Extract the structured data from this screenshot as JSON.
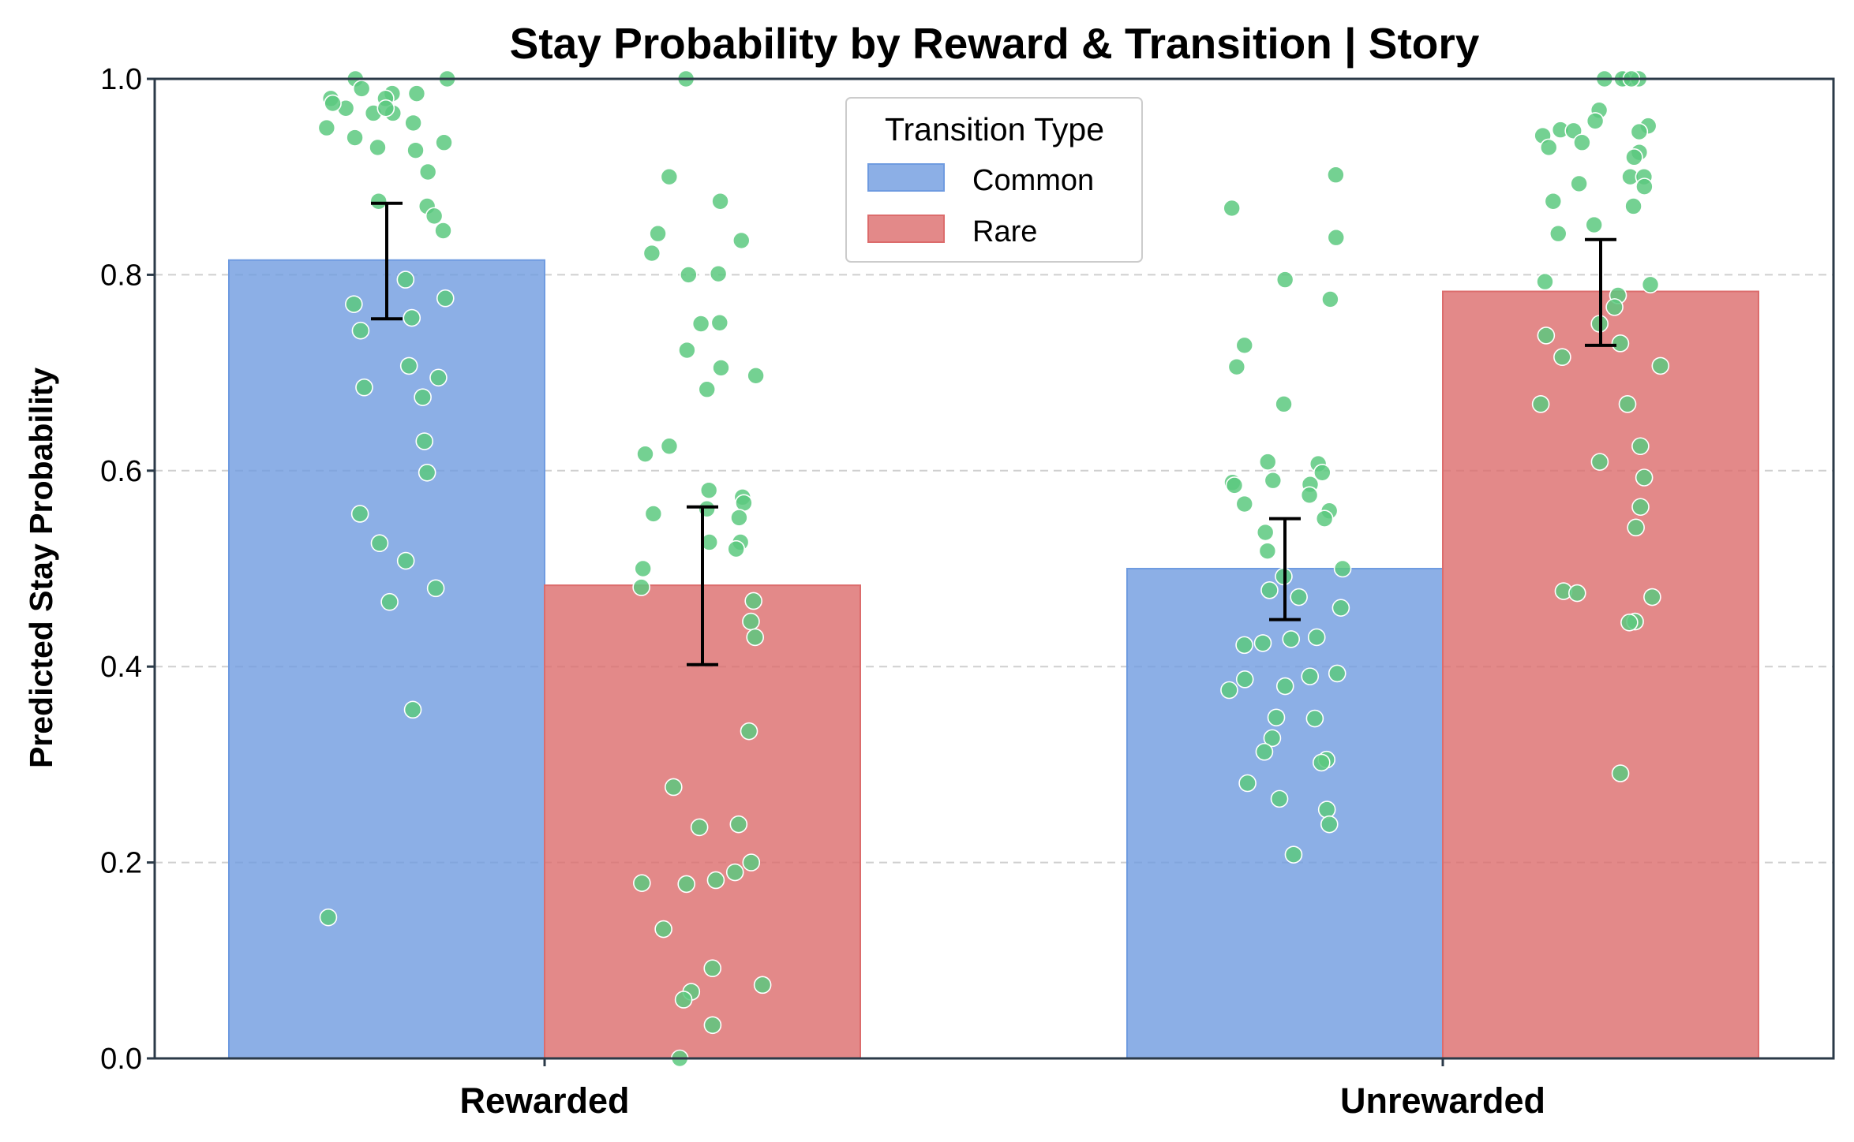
{
  "chart_data": {
    "type": "bar",
    "title": "Stay Probability by Reward & Transition | Story",
    "xlabel": "",
    "ylabel": "Predicted Stay Probability",
    "ylim": [
      0,
      1.0
    ],
    "yticks": [
      "0.0",
      "0.2",
      "0.4",
      "0.6",
      "0.8",
      "1.0"
    ],
    "grid": "horizontal dashed",
    "categories": [
      "Rewarded",
      "Unrewarded"
    ],
    "legend": {
      "title": "Transition Type",
      "placement": "top-center"
    },
    "series": [
      {
        "name": "Common",
        "color": "#6f9be0",
        "values": [
          0.815,
          0.5
        ],
        "errors": [
          [
            0.755,
            0.873
          ],
          [
            0.448,
            0.551
          ]
        ]
      },
      {
        "name": "Rare",
        "color": "#dc6c6c",
        "values": [
          0.483,
          0.783
        ],
        "errors": [
          [
            0.402,
            0.563
          ],
          [
            0.728,
            0.836
          ]
        ]
      }
    ],
    "points_color": "#5cc97f",
    "points": [
      [
        [
          1.0,
          0.98,
          0.97,
          0.99,
          0.985,
          0.975,
          0.93,
          0.955,
          0.94,
          0.965,
          0.935,
          0.927,
          0.87,
          0.875,
          0.86,
          0.905,
          0.845,
          0.795,
          0.77,
          0.776,
          0.756,
          0.743,
          0.707,
          0.695,
          0.685,
          0.675,
          0.63,
          0.598,
          0.556,
          0.526,
          0.508,
          0.48,
          0.466,
          0.356,
          0.144,
          1.0,
          0.98,
          0.965,
          0.97,
          0.95,
          0.985
        ],
        [
          1.0,
          0.9,
          0.875,
          0.842,
          0.835,
          0.822,
          0.801,
          0.8,
          0.751,
          0.75,
          0.723,
          0.705,
          0.697,
          0.683,
          0.625,
          0.617,
          0.58,
          0.573,
          0.561,
          0.567,
          0.556,
          0.552,
          0.527,
          0.527,
          0.52,
          0.5,
          0.481,
          0.467,
          0.446,
          0.43,
          0.334,
          0.277,
          0.239,
          0.236,
          0.2,
          0.19,
          0.182,
          0.179,
          0.178,
          0.132,
          0.092,
          0.075,
          0.068,
          0.06,
          0.034,
          0.0
        ]
      ],
      [
        [
          0.902,
          0.868,
          0.838,
          0.795,
          0.775,
          0.728,
          0.706,
          0.668,
          0.609,
          0.607,
          0.598,
          0.59,
          0.588,
          0.586,
          0.585,
          0.575,
          0.566,
          0.559,
          0.551,
          0.537,
          0.518,
          0.5,
          0.492,
          0.478,
          0.471,
          0.46,
          0.43,
          0.428,
          0.424,
          0.422,
          0.393,
          0.39,
          0.387,
          0.38,
          0.376,
          0.348,
          0.347,
          0.327,
          0.313,
          0.305,
          0.302,
          0.281,
          0.265,
          0.254,
          0.239,
          0.208
        ],
        [
          1.0,
          1.0,
          1.0,
          0.968,
          0.957,
          0.952,
          0.948,
          0.947,
          0.946,
          0.942,
          0.935,
          0.93,
          0.925,
          0.92,
          0.9,
          0.9,
          0.893,
          0.89,
          0.875,
          0.87,
          0.851,
          0.842,
          0.793,
          0.79,
          0.779,
          0.767,
          0.75,
          0.738,
          0.73,
          0.716,
          0.707,
          0.668,
          0.668,
          0.625,
          0.609,
          0.593,
          0.563,
          0.542,
          0.477,
          0.475,
          0.471,
          0.446,
          0.445,
          0.291,
          1.0,
          1.0
        ]
      ]
    ]
  }
}
